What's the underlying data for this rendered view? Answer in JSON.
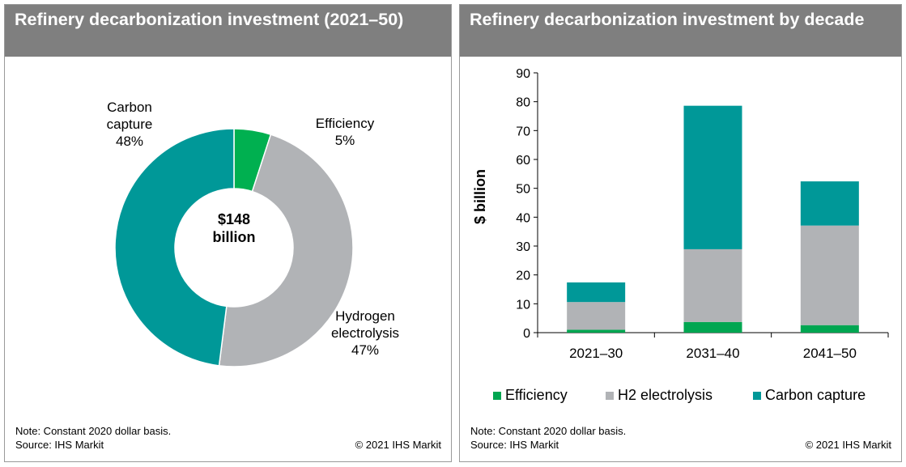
{
  "left_panel": {
    "title": "Refinery decarbonization investment (2021–50)",
    "center_label_1": "$148",
    "center_label_2": "billion",
    "note": "Note: Constant 2020 dollar basis.",
    "source": "Source: IHS Markit",
    "copyright": "© 2021 IHS Markit",
    "slice_labels": [
      {
        "name_1": "Carbon",
        "name_2": "capture",
        "pct": "48%"
      },
      {
        "name_1": "Efficiency",
        "name_2": "",
        "pct": "5%"
      },
      {
        "name_1": "Hydrogen",
        "name_2": "electrolysis",
        "pct": "47%"
      }
    ]
  },
  "right_panel": {
    "title": "Refinery decarbonization investment by decade",
    "ylabel": "$ billion",
    "note": "Note: Constant 2020 dollar basis.",
    "source": "Source: IHS Markit",
    "copyright": "© 2021 IHS Markit",
    "legend": [
      {
        "label": "Efficiency",
        "color": "#00a651"
      },
      {
        "label": "H2 electrolysis",
        "color": "#b1b3b6"
      },
      {
        "label": "Carbon capture",
        "color": "#009898"
      }
    ]
  },
  "chart_data": [
    {
      "type": "pie",
      "title": "Refinery decarbonization investment (2021–50)",
      "center_text": "$148 billion",
      "slices": [
        {
          "label": "Efficiency",
          "value": 5,
          "color": "#00b050"
        },
        {
          "label": "Hydrogen electrolysis",
          "value": 47,
          "color": "#b1b3b6"
        },
        {
          "label": "Carbon capture",
          "value": 48,
          "color": "#009898"
        }
      ]
    },
    {
      "type": "bar",
      "stacked": true,
      "title": "Refinery decarbonization investment by decade",
      "ylabel": "$ billion",
      "ylim": [
        0,
        90
      ],
      "yticks": [
        0,
        10,
        20,
        30,
        40,
        50,
        60,
        70,
        80,
        90
      ],
      "grid": false,
      "legend_position": "bottom",
      "categories": [
        "2021–30",
        "2031–40",
        "2041–50"
      ],
      "series": [
        {
          "name": "Efficiency",
          "color": "#00a651",
          "values": [
            1.0,
            3.7,
            2.6
          ]
        },
        {
          "name": "H2 electrolysis",
          "color": "#b1b3b6",
          "values": [
            9.6,
            25.2,
            34.5
          ]
        },
        {
          "name": "Carbon capture",
          "color": "#009898",
          "values": [
            6.8,
            49.7,
            15.3
          ]
        }
      ]
    }
  ]
}
